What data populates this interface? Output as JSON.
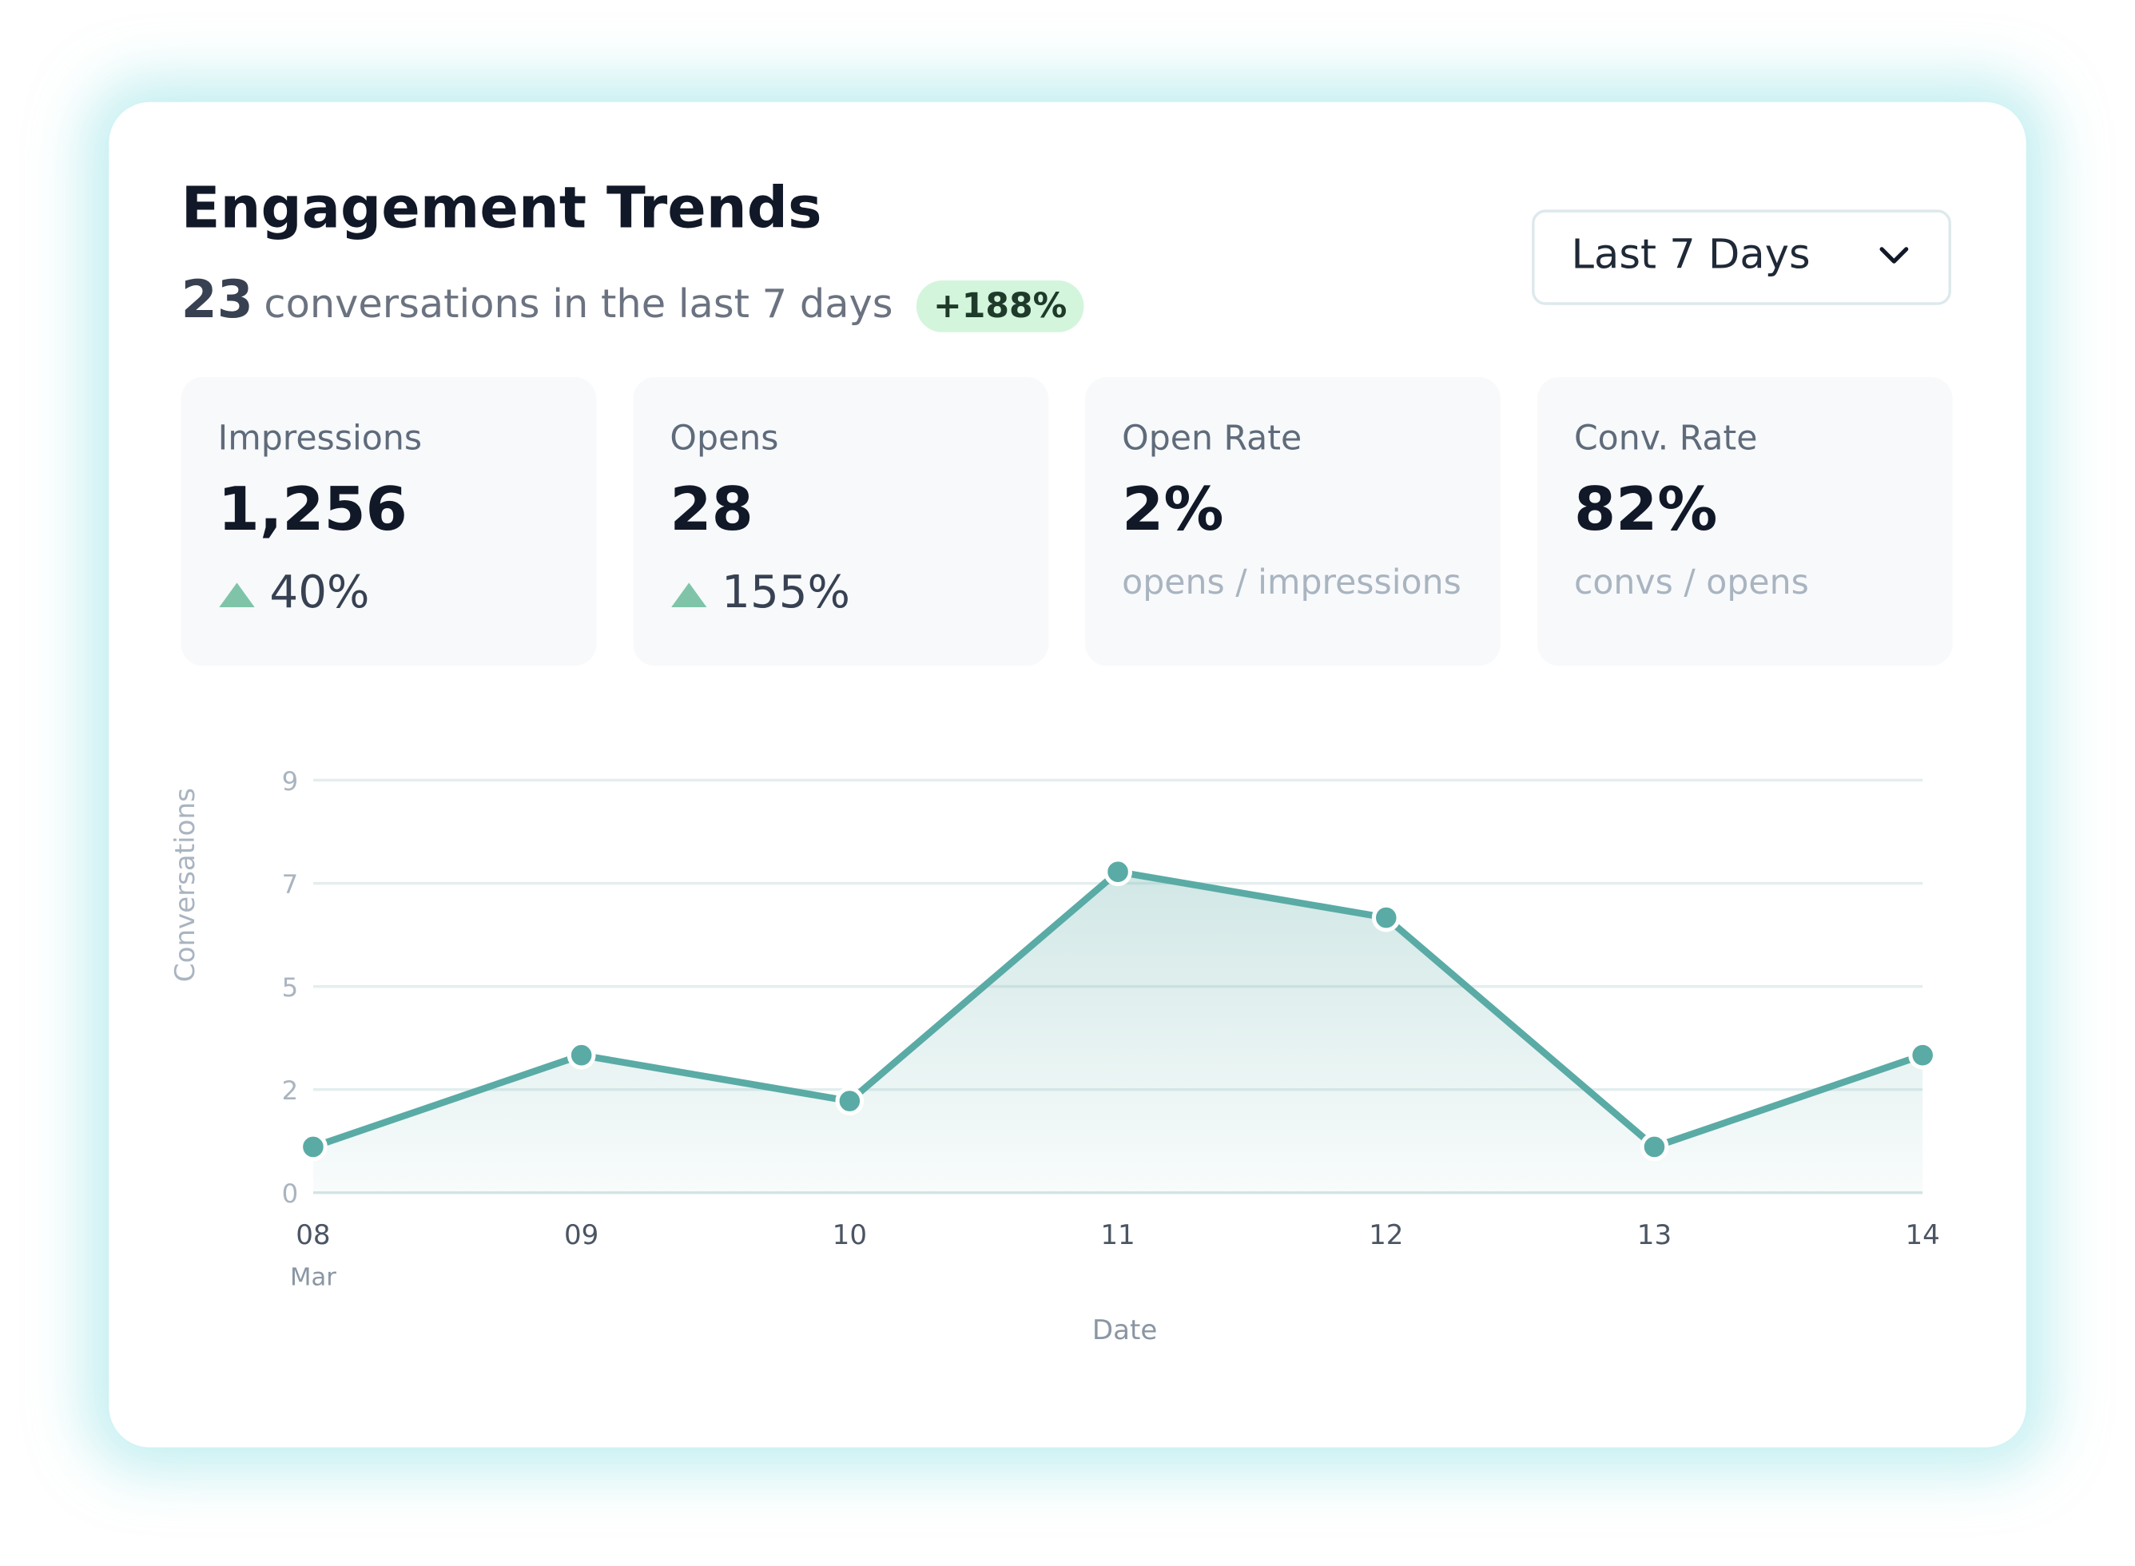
{
  "header": {
    "title": "Engagement Trends",
    "count": "23",
    "summary": "conversations in the last 7 days",
    "badge": "+188%"
  },
  "dropdown": {
    "label": "Last 7 Days"
  },
  "metrics": [
    {
      "label": "Impressions",
      "value": "1,256",
      "change": "40%"
    },
    {
      "label": "Opens",
      "value": "28",
      "change": "155%"
    },
    {
      "label": "Open Rate",
      "value": "2%",
      "note": "opens / impressions"
    },
    {
      "label": "Conv. Rate",
      "value": "82%",
      "note": "convs / opens"
    }
  ],
  "chart_data": {
    "type": "line",
    "x_label": "Date",
    "y_label": "Conversations",
    "x_month_label": "Mar",
    "categories": [
      "08",
      "09",
      "10",
      "11",
      "12",
      "13",
      "14"
    ],
    "series": [
      {
        "name": "Conversations",
        "color": "#5aaba5",
        "values": [
          1,
          3,
          2,
          7,
          6,
          1,
          3
        ]
      }
    ],
    "ylim": [
      0,
      9
    ],
    "yticks": [
      0,
      {
        "value": 2.25,
        "label": "2"
      },
      {
        "value": 4.5,
        "label": "5"
      },
      {
        "value": 6.75,
        "label": "7"
      },
      9
    ],
    "grid": true,
    "area": true
  }
}
